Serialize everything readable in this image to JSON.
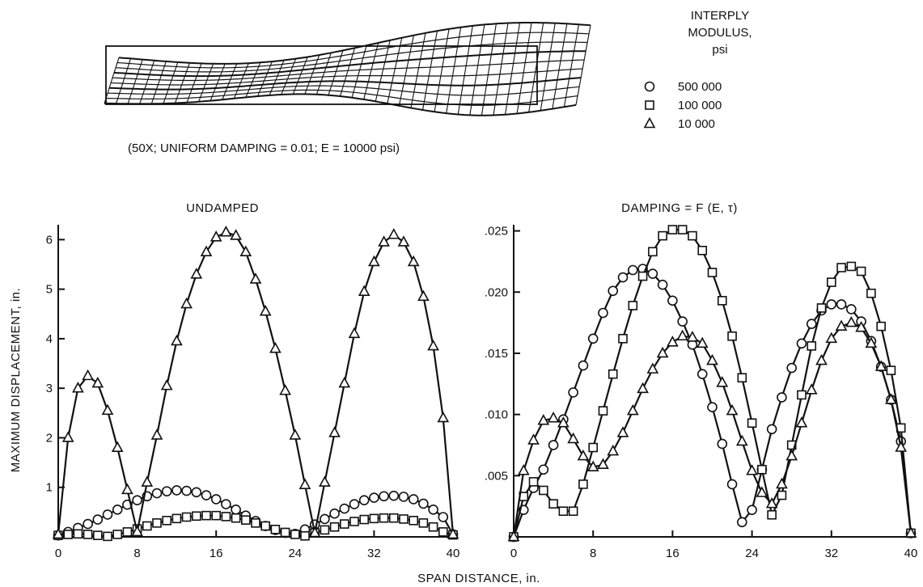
{
  "mesh_caption": "(50X; UNIFORM DAMPING = 0.01; E = 10000 psi)",
  "legend": {
    "title_lines": [
      "INTERPLY",
      "MODULUS,",
      "psi"
    ],
    "entries": [
      {
        "marker": "circle",
        "label": "500 000"
      },
      {
        "marker": "square",
        "label": "100 000"
      },
      {
        "marker": "triangle",
        "label": "10 000"
      }
    ]
  },
  "shared_xlabel": "SPAN DISTANCE, in.",
  "shared_ylabel": "MAXIMUM DISPLACEMENT, in.",
  "colors": {
    "ink": "#111111",
    "background": "#ffffff"
  },
  "chart_data": [
    {
      "type": "line",
      "title": "UNDAMPED",
      "xlim": [
        0,
        40
      ],
      "ylim": [
        0,
        6.3
      ],
      "xticks": [
        0,
        8,
        16,
        24,
        32,
        40
      ],
      "xtick_labels": [
        "0",
        "8",
        "16",
        "24",
        "32",
        "40"
      ],
      "yticks": [
        1,
        2,
        3,
        4,
        5,
        6
      ],
      "ytick_labels": [
        "1",
        "2",
        "3",
        "4",
        "5",
        "6"
      ],
      "grid": false,
      "series": [
        {
          "name": "500 000",
          "marker": "circle",
          "x": [
            0,
            1,
            2,
            3,
            4,
            5,
            6,
            7,
            8,
            9,
            10,
            11,
            12,
            13,
            14,
            15,
            16,
            17,
            18,
            19,
            20,
            21,
            22,
            23,
            24,
            25,
            26,
            27,
            28,
            29,
            30,
            31,
            32,
            33,
            34,
            35,
            36,
            37,
            38,
            39,
            40
          ],
          "y": [
            0.03,
            0.1,
            0.18,
            0.26,
            0.35,
            0.45,
            0.55,
            0.65,
            0.74,
            0.82,
            0.88,
            0.92,
            0.94,
            0.93,
            0.9,
            0.84,
            0.76,
            0.66,
            0.55,
            0.43,
            0.32,
            0.22,
            0.14,
            0.08,
            0.06,
            0.15,
            0.25,
            0.36,
            0.47,
            0.57,
            0.66,
            0.74,
            0.79,
            0.82,
            0.83,
            0.81,
            0.76,
            0.67,
            0.55,
            0.4,
            0.05
          ]
        },
        {
          "name": "100 000",
          "marker": "square",
          "x": [
            0,
            1,
            2,
            3,
            4,
            5,
            6,
            7,
            8,
            9,
            10,
            11,
            12,
            13,
            14,
            15,
            16,
            17,
            18,
            19,
            20,
            21,
            22,
            23,
            24,
            25,
            26,
            27,
            28,
            29,
            30,
            31,
            32,
            33,
            34,
            35,
            36,
            37,
            38,
            39,
            40
          ],
          "y": [
            0.03,
            0.05,
            0.06,
            0.05,
            0.03,
            0.01,
            0.05,
            0.1,
            0.16,
            0.22,
            0.28,
            0.33,
            0.37,
            0.4,
            0.42,
            0.43,
            0.43,
            0.41,
            0.38,
            0.34,
            0.28,
            0.22,
            0.15,
            0.09,
            0.05,
            0.02,
            0.08,
            0.14,
            0.2,
            0.26,
            0.31,
            0.35,
            0.37,
            0.38,
            0.38,
            0.36,
            0.33,
            0.28,
            0.2,
            0.1,
            0.04
          ]
        },
        {
          "name": "10 000",
          "marker": "triangle",
          "x": [
            0,
            1,
            2,
            3,
            4,
            5,
            6,
            7,
            8,
            9,
            10,
            11,
            12,
            13,
            14,
            15,
            16,
            17,
            18,
            19,
            20,
            21,
            22,
            23,
            24,
            25,
            26,
            27,
            28,
            29,
            30,
            31,
            32,
            33,
            34,
            35,
            36,
            37,
            38,
            39,
            40
          ],
          "y": [
            0.05,
            2.0,
            3.0,
            3.25,
            3.1,
            2.55,
            1.8,
            0.95,
            0.1,
            1.1,
            2.05,
            3.05,
            3.95,
            4.7,
            5.3,
            5.75,
            6.05,
            6.15,
            6.08,
            5.75,
            5.2,
            4.55,
            3.8,
            2.95,
            2.05,
            1.05,
            0.08,
            1.1,
            2.1,
            3.1,
            4.1,
            4.95,
            5.55,
            5.95,
            6.1,
            5.95,
            5.55,
            4.85,
            3.85,
            2.4,
            0.05
          ]
        }
      ]
    },
    {
      "type": "line",
      "title": "DAMPING = F (E, τ)",
      "xlim": [
        0,
        40
      ],
      "ylim": [
        0,
        0.0255
      ],
      "xticks": [
        0,
        8,
        16,
        24,
        32,
        40
      ],
      "xtick_labels": [
        "0",
        "8",
        "16",
        "24",
        "32",
        "40"
      ],
      "yticks": [
        0.005,
        0.01,
        0.015,
        0.02,
        0.025
      ],
      "ytick_labels": [
        ".005",
        ".010",
        ".015",
        ".020",
        ".025"
      ],
      "grid": false,
      "series": [
        {
          "name": "500 000",
          "marker": "circle",
          "x": [
            0,
            1,
            2,
            3,
            4,
            5,
            6,
            7,
            8,
            9,
            10,
            11,
            12,
            13,
            14,
            15,
            16,
            17,
            18,
            19,
            20,
            21,
            22,
            23,
            24,
            25,
            26,
            27,
            28,
            29,
            30,
            31,
            32,
            33,
            34,
            35,
            36,
            37,
            38,
            39,
            40
          ],
          "y": [
            0.0,
            0.0022,
            0.004,
            0.0055,
            0.0075,
            0.0096,
            0.0118,
            0.014,
            0.0162,
            0.0183,
            0.0201,
            0.0212,
            0.0218,
            0.0219,
            0.0215,
            0.0206,
            0.0193,
            0.0176,
            0.0157,
            0.0133,
            0.0106,
            0.0076,
            0.0043,
            0.0012,
            0.0022,
            0.0055,
            0.0088,
            0.0114,
            0.0138,
            0.0158,
            0.0174,
            0.0185,
            0.019,
            0.019,
            0.0186,
            0.0176,
            0.016,
            0.0139,
            0.0112,
            0.0078,
            0.0003
          ]
        },
        {
          "name": "100 000",
          "marker": "square",
          "x": [
            0,
            1,
            2,
            3,
            4,
            5,
            6,
            7,
            8,
            9,
            10,
            11,
            12,
            13,
            14,
            15,
            16,
            17,
            18,
            19,
            20,
            21,
            22,
            23,
            24,
            25,
            26,
            27,
            28,
            29,
            30,
            31,
            32,
            33,
            34,
            35,
            36,
            37,
            38,
            39,
            40
          ],
          "y": [
            0.0,
            0.0033,
            0.0045,
            0.0038,
            0.0027,
            0.0021,
            0.0021,
            0.0043,
            0.0073,
            0.0103,
            0.0133,
            0.0162,
            0.0189,
            0.0213,
            0.0233,
            0.0246,
            0.0251,
            0.0251,
            0.0246,
            0.0234,
            0.0216,
            0.0193,
            0.0164,
            0.013,
            0.0093,
            0.0055,
            0.0018,
            0.0034,
            0.0075,
            0.0116,
            0.0156,
            0.0187,
            0.0208,
            0.022,
            0.0221,
            0.0217,
            0.0199,
            0.0172,
            0.0136,
            0.0089,
            0.0003
          ]
        },
        {
          "name": "10 000",
          "marker": "triangle",
          "x": [
            0,
            1,
            2,
            3,
            4,
            5,
            6,
            7,
            8,
            9,
            10,
            11,
            12,
            13,
            14,
            15,
            16,
            17,
            18,
            19,
            20,
            21,
            22,
            23,
            24,
            25,
            26,
            27,
            28,
            29,
            30,
            31,
            32,
            33,
            34,
            35,
            36,
            37,
            38,
            39,
            40
          ],
          "y": [
            0.0,
            0.0054,
            0.0079,
            0.0095,
            0.0097,
            0.0093,
            0.008,
            0.0066,
            0.0057,
            0.0059,
            0.007,
            0.0085,
            0.0103,
            0.0121,
            0.0137,
            0.015,
            0.0159,
            0.0164,
            0.0163,
            0.0158,
            0.0144,
            0.0126,
            0.0103,
            0.0078,
            0.0054,
            0.0036,
            0.0027,
            0.0043,
            0.0066,
            0.0093,
            0.012,
            0.0144,
            0.0162,
            0.0172,
            0.0175,
            0.0171,
            0.0158,
            0.0139,
            0.0112,
            0.0073,
            0.0003
          ]
        }
      ]
    }
  ]
}
